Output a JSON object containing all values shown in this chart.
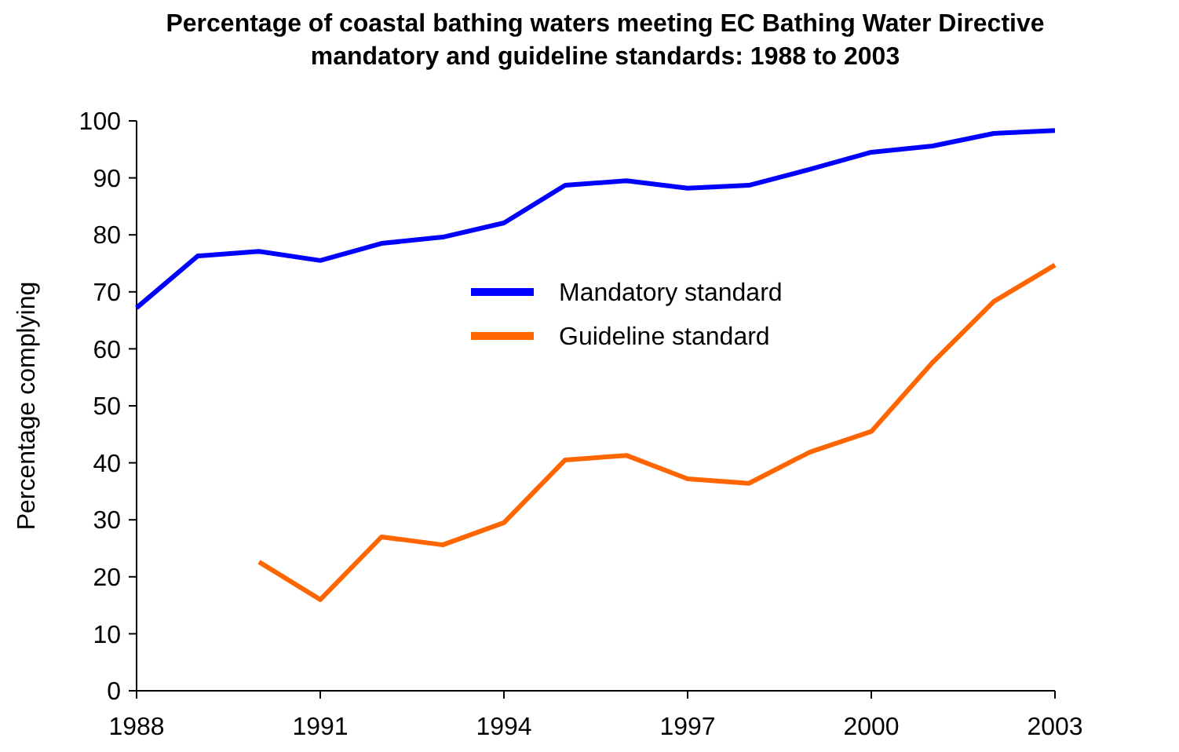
{
  "chart_data": {
    "type": "line",
    "title": "Percentage of coastal bathing waters meeting EC Bathing Water Directive\nmandatory and guideline standards: 1988 to 2003",
    "ylabel": "Percentage complying",
    "x": [
      1988,
      1989,
      1990,
      1991,
      1992,
      1993,
      1994,
      1995,
      1996,
      1997,
      1998,
      1999,
      2000,
      2001,
      2002,
      2003
    ],
    "series": [
      {
        "name": "Mandatory standard",
        "color": "#0000ff",
        "values": [
          67.2,
          76.3,
          77.1,
          75.5,
          78.5,
          79.6,
          82.1,
          88.7,
          89.5,
          88.2,
          88.7,
          91.5,
          94.5,
          95.6,
          97.8,
          98.3
        ]
      },
      {
        "name": "Guideline standard",
        "color": "#ff6600",
        "values": [
          null,
          null,
          22.6,
          16.0,
          27.0,
          25.6,
          29.5,
          40.5,
          41.3,
          37.2,
          36.4,
          41.9,
          45.5,
          57.6,
          68.3,
          74.7
        ]
      }
    ],
    "xlim": [
      1988,
      2003
    ],
    "xticks": [
      1988,
      1991,
      1994,
      1997,
      2000,
      2003
    ],
    "ylim": [
      0,
      100
    ],
    "yticks": [
      0,
      10,
      20,
      30,
      40,
      50,
      60,
      70,
      80,
      90,
      100
    ],
    "grid": false,
    "legend": "right",
    "marker": "none",
    "line_style": "solid"
  }
}
